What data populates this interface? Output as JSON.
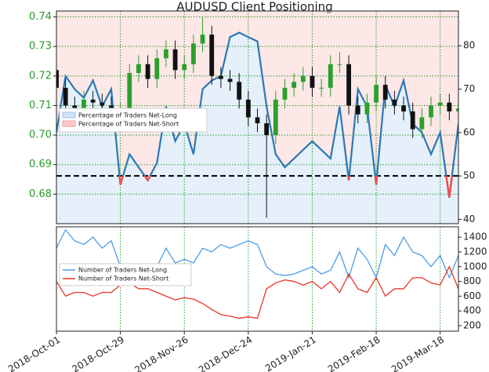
{
  "chart_data": [
    {
      "type": "candlestick",
      "title": "AUDUSD Client Positioning",
      "x": [
        "2018-Oct-01",
        "2018-Oct-05",
        "2018-Oct-09",
        "2018-Oct-13",
        "2018-Oct-17",
        "2018-Oct-21",
        "2018-Oct-25",
        "2018-Oct-29",
        "2018-Nov-02",
        "2018-Nov-06",
        "2018-Nov-10",
        "2018-Nov-14",
        "2018-Nov-18",
        "2018-Nov-22",
        "2018-Nov-26",
        "2018-Nov-30",
        "2018-Dec-04",
        "2018-Dec-08",
        "2018-Dec-12",
        "2018-Dec-16",
        "2018-Dec-20",
        "2018-Dec-24",
        "2018-Dec-28",
        "2019-Jan-01",
        "2019-Jan-05",
        "2019-Jan-09",
        "2019-Jan-13",
        "2019-Jan-17",
        "2019-Jan-21",
        "2019-Jan-25",
        "2019-Jan-29",
        "2019-Feb-02",
        "2019-Feb-06",
        "2019-Feb-10",
        "2019-Feb-14",
        "2019-Feb-18",
        "2019-Feb-22",
        "2019-Feb-26",
        "2019-Mar-02",
        "2019-Mar-06",
        "2019-Mar-10",
        "2019-Mar-14",
        "2019-Mar-18",
        "2019-Mar-22",
        "2019-Mar-26"
      ],
      "open": [
        0.722,
        0.716,
        0.71,
        0.707,
        0.712,
        0.711,
        0.71,
        0.707,
        0.708,
        0.721,
        0.724,
        0.719,
        0.726,
        0.729,
        0.722,
        0.724,
        0.731,
        0.734,
        0.72,
        0.719,
        0.718,
        0.712,
        0.706,
        0.704,
        0.7,
        0.712,
        0.716,
        0.718,
        0.72,
        0.716,
        0.716,
        0.724,
        0.724,
        0.71,
        0.707,
        0.711,
        0.717,
        0.712,
        0.71,
        0.708,
        0.702,
        0.706,
        0.71,
        0.711,
        0.708
      ],
      "high": [
        0.725,
        0.719,
        0.713,
        0.715,
        0.715,
        0.714,
        0.713,
        0.711,
        0.724,
        0.727,
        0.727,
        0.729,
        0.732,
        0.732,
        0.727,
        0.734,
        0.74,
        0.737,
        0.723,
        0.722,
        0.721,
        0.715,
        0.709,
        0.707,
        0.715,
        0.719,
        0.721,
        0.723,
        0.723,
        0.719,
        0.727,
        0.728,
        0.727,
        0.713,
        0.714,
        0.72,
        0.72,
        0.715,
        0.713,
        0.711,
        0.709,
        0.713,
        0.714,
        0.714,
        0.712
      ],
      "low": [
        0.713,
        0.707,
        0.704,
        0.704,
        0.708,
        0.707,
        0.704,
        0.704,
        0.705,
        0.718,
        0.716,
        0.716,
        0.723,
        0.719,
        0.719,
        0.721,
        0.728,
        0.717,
        0.716,
        0.715,
        0.709,
        0.703,
        0.701,
        0.672,
        0.697,
        0.709,
        0.713,
        0.715,
        0.713,
        0.713,
        0.713,
        0.721,
        0.707,
        0.704,
        0.704,
        0.708,
        0.709,
        0.707,
        0.705,
        0.699,
        0.699,
        0.703,
        0.707,
        0.705,
        0.705
      ],
      "close": [
        0.716,
        0.71,
        0.707,
        0.712,
        0.711,
        0.71,
        0.707,
        0.708,
        0.721,
        0.724,
        0.719,
        0.726,
        0.729,
        0.722,
        0.724,
        0.731,
        0.734,
        0.72,
        0.719,
        0.718,
        0.712,
        0.706,
        0.704,
        0.7,
        0.712,
        0.716,
        0.718,
        0.72,
        0.716,
        0.716,
        0.724,
        0.724,
        0.71,
        0.707,
        0.711,
        0.717,
        0.712,
        0.71,
        0.708,
        0.702,
        0.706,
        0.71,
        0.711,
        0.708,
        0.709
      ],
      "color_up": "#2ca02c",
      "color_down": "#111111",
      "xlim": [
        "2018-Oct-01",
        "2019-Mar-26"
      ],
      "xticks": [
        "2018-Oct-01",
        "2018-Oct-29",
        "2018-Nov-26",
        "2018-Dec-24",
        "2019-Jan-21",
        "2019-Feb-18",
        "2019-Mar-18"
      ],
      "ylim": [
        0.67,
        0.742
      ],
      "yticks": [
        0.68,
        0.69,
        {
          "value": 0.7,
          "label": "0.70"
        },
        0.71,
        0.72,
        0.73,
        0.74
      ],
      "y2lim": [
        39,
        88
      ],
      "y2ticks": [
        40,
        50,
        60,
        70,
        80
      ],
      "series": [
        {
          "name": "Percentage of Traders Net-Long",
          "color": "#2b78b5",
          "axis": "y2",
          "values": [
            60,
            73,
            70,
            68,
            72,
            66,
            70,
            48,
            55,
            52,
            49,
            53,
            66,
            58,
            62,
            55,
            70,
            72,
            73,
            82,
            83,
            82,
            81,
            66,
            55,
            52,
            54,
            56,
            58,
            56,
            54,
            66,
            49,
            70,
            66,
            48,
            71,
            66,
            72,
            62,
            60,
            55,
            60,
            45,
            62
          ]
        }
      ],
      "legend": [
        {
          "name": "Percentage of Traders Net-Long",
          "color": "#cfe4f7"
        },
        {
          "name": "Percentage of Traders Net-Short",
          "color": "#fbc9c9"
        }
      ],
      "reference_line": 50,
      "below_color": "#e8514a",
      "grid": true
    },
    {
      "type": "line",
      "x": [
        "2018-Oct-01",
        "2018-Oct-05",
        "2018-Oct-09",
        "2018-Oct-13",
        "2018-Oct-17",
        "2018-Oct-21",
        "2018-Oct-25",
        "2018-Oct-29",
        "2018-Nov-02",
        "2018-Nov-06",
        "2018-Nov-10",
        "2018-Nov-14",
        "2018-Nov-18",
        "2018-Nov-22",
        "2018-Nov-26",
        "2018-Nov-30",
        "2018-Dec-04",
        "2018-Dec-08",
        "2018-Dec-12",
        "2018-Dec-16",
        "2018-Dec-20",
        "2018-Dec-24",
        "2018-Dec-28",
        "2019-Jan-01",
        "2019-Jan-05",
        "2019-Jan-09",
        "2019-Jan-13",
        "2019-Jan-17",
        "2019-Jan-21",
        "2019-Jan-25",
        "2019-Jan-29",
        "2019-Feb-02",
        "2019-Feb-06",
        "2019-Feb-10",
        "2019-Feb-14",
        "2019-Feb-18",
        "2019-Feb-22",
        "2019-Feb-26",
        "2019-Mar-02",
        "2019-Mar-06",
        "2019-Mar-10",
        "2019-Mar-14",
        "2019-Mar-18",
        "2019-Mar-22",
        "2019-Mar-26"
      ],
      "series": [
        {
          "name": "Number of Traders Net-Long",
          "color": "#4a9ee6",
          "values": [
            1250,
            1500,
            1350,
            1300,
            1400,
            1250,
            1350,
            1000,
            1000,
            950,
            900,
            1000,
            1250,
            1050,
            1100,
            1050,
            1250,
            1200,
            1300,
            1250,
            1300,
            1350,
            1300,
            1000,
            900,
            880,
            900,
            950,
            1000,
            900,
            950,
            1200,
            850,
            1250,
            1100,
            850,
            1300,
            1150,
            1400,
            1200,
            1150,
            1000,
            1150,
            850,
            1150
          ]
        },
        {
          "name": "Number of Traders Net-Short",
          "color": "#e8342c",
          "values": [
            800,
            600,
            650,
            650,
            600,
            650,
            650,
            750,
            780,
            700,
            700,
            650,
            600,
            550,
            580,
            560,
            500,
            420,
            350,
            330,
            300,
            320,
            300,
            700,
            780,
            820,
            800,
            750,
            800,
            700,
            800,
            650,
            900,
            700,
            650,
            850,
            600,
            700,
            700,
            850,
            850,
            780,
            750,
            1000,
            700
          ]
        }
      ],
      "xlim": [
        "2018-Oct-01",
        "2019-Mar-26"
      ],
      "xticks": [
        "2018-Oct-01",
        "2018-Oct-29",
        "2018-Nov-26",
        "2018-Dec-24",
        "2019-Jan-21",
        "2019-Feb-18",
        "2019-Mar-18"
      ],
      "ylim": [
        125,
        1540
      ],
      "yticks": [
        200,
        400,
        600,
        800,
        1000,
        1200,
        1400
      ],
      "grid": true
    }
  ]
}
